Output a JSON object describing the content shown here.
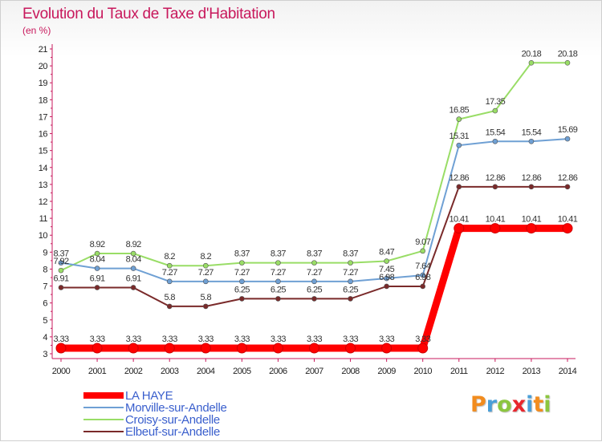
{
  "header": {
    "title": "Evolution du Taux de Taxe d'Habitation",
    "unit": "(en %)"
  },
  "logo": {
    "text": "Proxiti",
    "letter_colors": [
      "#f28c1e",
      "#4a9fd8",
      "#8cc63f",
      "#e8262d",
      "#4a9fd8",
      "#f28c1e",
      "#8cc63f"
    ]
  },
  "chart_data": {
    "type": "line",
    "title": "Evolution du Taux de Taxe d'Habitation",
    "ylabel": "(en %)",
    "xlabel": "",
    "x": [
      2000,
      2001,
      2002,
      2003,
      2004,
      2005,
      2006,
      2007,
      2008,
      2009,
      2010,
      2011,
      2012,
      2013,
      2014
    ],
    "ylim": [
      3,
      21
    ],
    "yticks": [
      3,
      4,
      5,
      6,
      7,
      8,
      9,
      10,
      11,
      12,
      13,
      14,
      15,
      16,
      17,
      18,
      19,
      20,
      21
    ],
    "grid": false,
    "legend_position": "bottom-left",
    "series": [
      {
        "name": "LA HAYE",
        "color": "#ff0000",
        "values": [
          3.33,
          3.33,
          3.33,
          3.33,
          3.33,
          3.33,
          3.33,
          3.33,
          3.33,
          3.33,
          3.33,
          10.41,
          10.41,
          10.41,
          10.41
        ],
        "labels": [
          "3.33",
          "3.33",
          "3.33",
          "3.33",
          "3.33",
          "3.33",
          "3.33",
          "3.33",
          "3.33",
          "3.33",
          "3.33",
          "10.41",
          "10.41",
          "10.41",
          "10.41"
        ]
      },
      {
        "name": "Morville-sur-Andelle",
        "color": "#6fa0d4",
        "values": [
          8.37,
          8.04,
          8.04,
          7.27,
          7.27,
          7.27,
          7.27,
          7.27,
          7.27,
          7.45,
          7.64,
          15.31,
          15.54,
          15.54,
          15.69
        ],
        "labels": [
          "8.37",
          "8.04",
          "8.04",
          "7.27",
          "7.27",
          "7.27",
          "7.27",
          "7.27",
          "7.27",
          "7.45",
          "7.64",
          "15.31",
          "15.54",
          "15.54",
          "15.69"
        ]
      },
      {
        "name": "Croisy-sur-Andelle",
        "color": "#99dd66",
        "values": [
          7.92,
          8.92,
          8.92,
          8.2,
          8.2,
          8.37,
          8.37,
          8.37,
          8.37,
          8.47,
          9.07,
          16.85,
          17.35,
          20.18,
          20.18
        ],
        "labels": [
          "7.92",
          "8.92",
          "8.92",
          "8.2",
          "8.2",
          "8.37",
          "8.37",
          "8.37",
          "8.37",
          "8.47",
          "9.07",
          "16.85",
          "17.35",
          "20.18",
          "20.18"
        ]
      },
      {
        "name": "Elbeuf-sur-Andelle",
        "color": "#7a2a2a",
        "values": [
          6.91,
          6.91,
          6.91,
          5.8,
          5.8,
          6.25,
          6.25,
          6.25,
          6.25,
          6.98,
          6.98,
          12.86,
          12.86,
          12.86,
          12.86
        ],
        "labels": [
          "6.91",
          "6.91",
          "6.91",
          "5.8",
          "5.8",
          "6.25",
          "6.25",
          "6.25",
          "6.25",
          "6.98",
          "6.98",
          "12.86",
          "12.86",
          "12.86",
          "12.86"
        ]
      }
    ]
  }
}
